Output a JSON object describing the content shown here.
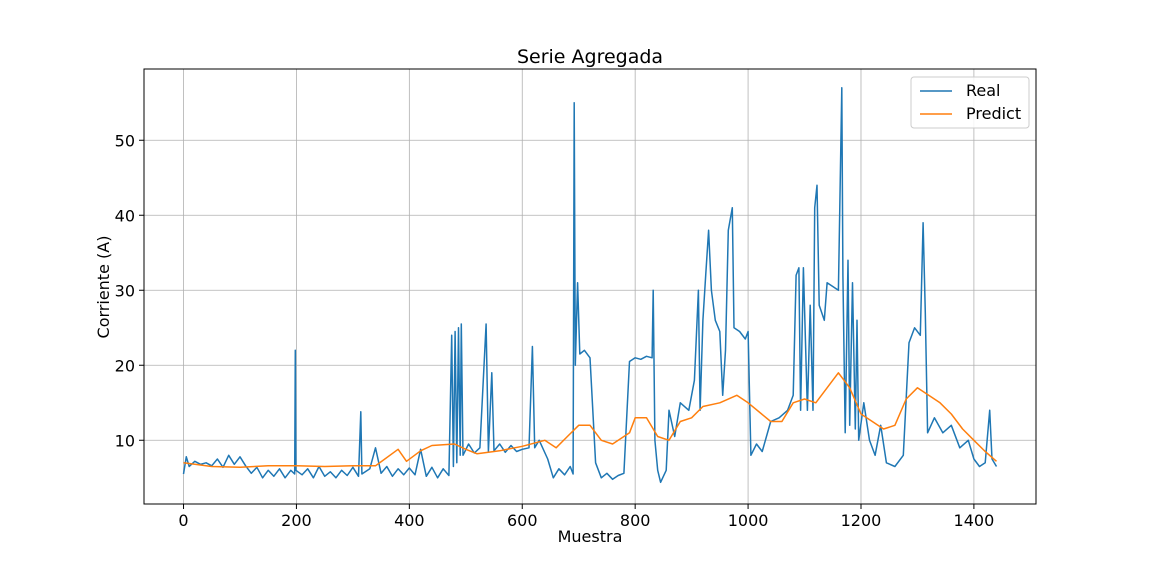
{
  "chart_data": {
    "type": "line",
    "title": "Serie Agregada",
    "xlabel": "Muestra",
    "ylabel": "Corriente (A)",
    "xlim": [
      -70,
      1510
    ],
    "ylim": [
      1.5,
      59.5
    ],
    "xticks": [
      0,
      200,
      400,
      600,
      800,
      1000,
      1200,
      1400
    ],
    "yticks": [
      10,
      20,
      30,
      40,
      50
    ],
    "grid": true,
    "legend_position": "top-right",
    "series": [
      {
        "name": "Real",
        "color": "#1f77b4",
        "points": [
          [
            0,
            5.5
          ],
          [
            5,
            7.8
          ],
          [
            10,
            6.5
          ],
          [
            20,
            7.2
          ],
          [
            30,
            6.8
          ],
          [
            40,
            7.0
          ],
          [
            50,
            6.6
          ],
          [
            60,
            7.5
          ],
          [
            70,
            6.4
          ],
          [
            80,
            8.0
          ],
          [
            90,
            6.8
          ],
          [
            100,
            7.8
          ],
          [
            110,
            6.6
          ],
          [
            120,
            5.6
          ],
          [
            130,
            6.4
          ],
          [
            140,
            5.0
          ],
          [
            150,
            6.0
          ],
          [
            160,
            5.2
          ],
          [
            170,
            6.2
          ],
          [
            180,
            5.0
          ],
          [
            190,
            6.0
          ],
          [
            197,
            5.5
          ],
          [
            198,
            22.0
          ],
          [
            199,
            6.0
          ],
          [
            210,
            5.4
          ],
          [
            220,
            6.2
          ],
          [
            230,
            5.0
          ],
          [
            240,
            6.5
          ],
          [
            250,
            5.2
          ],
          [
            260,
            5.8
          ],
          [
            270,
            5.0
          ],
          [
            280,
            6.0
          ],
          [
            290,
            5.3
          ],
          [
            300,
            6.4
          ],
          [
            310,
            5.2
          ],
          [
            314,
            13.8
          ],
          [
            316,
            5.5
          ],
          [
            330,
            6.2
          ],
          [
            340,
            9.0
          ],
          [
            350,
            5.6
          ],
          [
            360,
            6.5
          ],
          [
            370,
            5.2
          ],
          [
            380,
            6.2
          ],
          [
            390,
            5.4
          ],
          [
            400,
            6.3
          ],
          [
            410,
            5.4
          ],
          [
            420,
            8.8
          ],
          [
            430,
            5.2
          ],
          [
            440,
            6.4
          ],
          [
            450,
            5.0
          ],
          [
            460,
            6.2
          ],
          [
            470,
            5.3
          ],
          [
            475,
            24.0
          ],
          [
            478,
            6.5
          ],
          [
            481,
            24.5
          ],
          [
            484,
            7.0
          ],
          [
            487,
            25.0
          ],
          [
            490,
            8.0
          ],
          [
            492,
            25.5
          ],
          [
            495,
            8.0
          ],
          [
            505,
            9.5
          ],
          [
            515,
            8.3
          ],
          [
            525,
            9.0
          ],
          [
            536,
            25.5
          ],
          [
            540,
            8.5
          ],
          [
            546,
            19.0
          ],
          [
            550,
            8.6
          ],
          [
            560,
            9.5
          ],
          [
            570,
            8.4
          ],
          [
            580,
            9.3
          ],
          [
            590,
            8.5
          ],
          [
            600,
            8.8
          ],
          [
            612,
            9.0
          ],
          [
            618,
            22.5
          ],
          [
            622,
            9.0
          ],
          [
            630,
            10.0
          ],
          [
            645,
            7.5
          ],
          [
            655,
            5.0
          ],
          [
            665,
            6.2
          ],
          [
            675,
            5.4
          ],
          [
            685,
            6.5
          ],
          [
            690,
            5.5
          ],
          [
            692,
            55.0
          ],
          [
            694,
            20.0
          ],
          [
            698,
            31.0
          ],
          [
            702,
            21.5
          ],
          [
            710,
            22.0
          ],
          [
            720,
            21.0
          ],
          [
            730,
            7.0
          ],
          [
            740,
            5.0
          ],
          [
            750,
            5.6
          ],
          [
            760,
            4.8
          ],
          [
            770,
            5.3
          ],
          [
            780,
            5.6
          ],
          [
            790,
            20.5
          ],
          [
            800,
            21.0
          ],
          [
            810,
            20.8
          ],
          [
            820,
            21.2
          ],
          [
            830,
            21.0
          ],
          [
            832,
            30.0
          ],
          [
            835,
            10.0
          ],
          [
            840,
            6.0
          ],
          [
            845,
            4.4
          ],
          [
            855,
            6.0
          ],
          [
            860,
            14.0
          ],
          [
            870,
            10.5
          ],
          [
            880,
            15.0
          ],
          [
            895,
            14.0
          ],
          [
            905,
            18.0
          ],
          [
            912,
            30.0
          ],
          [
            915,
            14.0
          ],
          [
            920,
            26.0
          ],
          [
            925,
            32.0
          ],
          [
            930,
            38.0
          ],
          [
            935,
            30.0
          ],
          [
            942,
            26.0
          ],
          [
            950,
            24.5
          ],
          [
            955,
            16.0
          ],
          [
            960,
            22.0
          ],
          [
            965,
            38.0
          ],
          [
            972,
            41.0
          ],
          [
            975,
            25.0
          ],
          [
            985,
            24.5
          ],
          [
            995,
            23.5
          ],
          [
            1000,
            24.5
          ],
          [
            1005,
            8.0
          ],
          [
            1015,
            9.5
          ],
          [
            1025,
            8.5
          ],
          [
            1040,
            12.5
          ],
          [
            1055,
            13.0
          ],
          [
            1070,
            14.0
          ],
          [
            1080,
            16.0
          ],
          [
            1085,
            32.0
          ],
          [
            1090,
            33.0
          ],
          [
            1093,
            14.0
          ],
          [
            1098,
            33.0
          ],
          [
            1105,
            14.0
          ],
          [
            1110,
            28.0
          ],
          [
            1115,
            14.0
          ],
          [
            1118,
            41.0
          ],
          [
            1122,
            44.0
          ],
          [
            1126,
            28.0
          ],
          [
            1135,
            26.0
          ],
          [
            1140,
            31.0
          ],
          [
            1150,
            30.5
          ],
          [
            1160,
            30.0
          ],
          [
            1166,
            57.0
          ],
          [
            1168,
            32.0
          ],
          [
            1172,
            11.0
          ],
          [
            1177,
            34.0
          ],
          [
            1180,
            12.0
          ],
          [
            1185,
            31.0
          ],
          [
            1190,
            11.5
          ],
          [
            1193,
            26.0
          ],
          [
            1196,
            10.0
          ],
          [
            1205,
            15.0
          ],
          [
            1215,
            10.0
          ],
          [
            1225,
            8.0
          ],
          [
            1235,
            12.0
          ],
          [
            1245,
            7.0
          ],
          [
            1260,
            6.5
          ],
          [
            1275,
            8.0
          ],
          [
            1285,
            23.0
          ],
          [
            1295,
            25.0
          ],
          [
            1305,
            24.0
          ],
          [
            1310,
            39.0
          ],
          [
            1314,
            27.0
          ],
          [
            1318,
            11.0
          ],
          [
            1330,
            13.0
          ],
          [
            1345,
            11.0
          ],
          [
            1360,
            12.0
          ],
          [
            1375,
            9.0
          ],
          [
            1390,
            10.0
          ],
          [
            1400,
            7.5
          ],
          [
            1410,
            6.5
          ],
          [
            1420,
            7.0
          ],
          [
            1428,
            14.0
          ],
          [
            1432,
            7.5
          ],
          [
            1440,
            6.5
          ]
        ]
      },
      {
        "name": "Predict",
        "color": "#ff7f0e",
        "points": [
          [
            0,
            7.0
          ],
          [
            50,
            6.5
          ],
          [
            100,
            6.4
          ],
          [
            150,
            6.6
          ],
          [
            200,
            6.6
          ],
          [
            250,
            6.5
          ],
          [
            300,
            6.6
          ],
          [
            340,
            6.6
          ],
          [
            380,
            8.8
          ],
          [
            395,
            7.2
          ],
          [
            420,
            8.6
          ],
          [
            440,
            9.3
          ],
          [
            480,
            9.5
          ],
          [
            500,
            8.8
          ],
          [
            520,
            8.2
          ],
          [
            560,
            8.6
          ],
          [
            600,
            9.2
          ],
          [
            640,
            10.0
          ],
          [
            660,
            9.0
          ],
          [
            680,
            10.5
          ],
          [
            700,
            12.0
          ],
          [
            720,
            12.0
          ],
          [
            740,
            10.0
          ],
          [
            760,
            9.5
          ],
          [
            780,
            10.5
          ],
          [
            790,
            11.0
          ],
          [
            800,
            13.0
          ],
          [
            820,
            13.0
          ],
          [
            840,
            10.5
          ],
          [
            860,
            10.0
          ],
          [
            880,
            12.5
          ],
          [
            900,
            13.0
          ],
          [
            920,
            14.5
          ],
          [
            950,
            15.0
          ],
          [
            980,
            16.0
          ],
          [
            1000,
            15.0
          ],
          [
            1040,
            12.5
          ],
          [
            1060,
            12.5
          ],
          [
            1080,
            15.0
          ],
          [
            1100,
            15.5
          ],
          [
            1120,
            15.0
          ],
          [
            1140,
            17.0
          ],
          [
            1160,
            19.0
          ],
          [
            1180,
            17.0
          ],
          [
            1200,
            13.5
          ],
          [
            1220,
            12.5
          ],
          [
            1240,
            11.5
          ],
          [
            1260,
            12.0
          ],
          [
            1280,
            15.5
          ],
          [
            1300,
            17.0
          ],
          [
            1320,
            16.0
          ],
          [
            1340,
            15.0
          ],
          [
            1360,
            13.5
          ],
          [
            1380,
            11.5
          ],
          [
            1400,
            10.0
          ],
          [
            1420,
            8.5
          ],
          [
            1440,
            7.2
          ]
        ]
      }
    ]
  }
}
